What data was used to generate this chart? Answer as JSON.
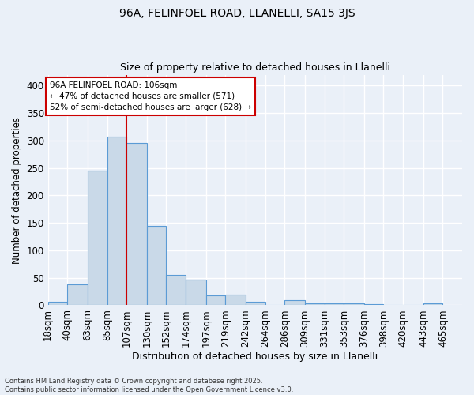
{
  "title1": "96A, FELINFOEL ROAD, LLANELLI, SA15 3JS",
  "title2": "Size of property relative to detached houses in Llanelli",
  "xlabel": "Distribution of detached houses by size in Llanelli",
  "ylabel": "Number of detached properties",
  "bin_labels": [
    "18sqm",
    "40sqm",
    "63sqm",
    "85sqm",
    "107sqm",
    "130sqm",
    "152sqm",
    "174sqm",
    "197sqm",
    "219sqm",
    "242sqm",
    "264sqm",
    "286sqm",
    "309sqm",
    "331sqm",
    "353sqm",
    "376sqm",
    "398sqm",
    "420sqm",
    "443sqm",
    "465sqm"
  ],
  "bin_edges": [
    18,
    40,
    63,
    85,
    107,
    130,
    152,
    174,
    197,
    219,
    242,
    264,
    286,
    309,
    331,
    353,
    376,
    398,
    420,
    443,
    465
  ],
  "bar_heights": [
    7,
    38,
    245,
    307,
    295,
    144,
    56,
    47,
    18,
    19,
    7,
    1,
    10,
    4,
    3,
    4,
    2,
    1,
    1,
    4
  ],
  "bar_color": "#c9d9e8",
  "bar_edge_color": "#5b9bd5",
  "vline_x": 107,
  "vline_color": "#cc0000",
  "annotation_line1": "96A FELINFOEL ROAD: 106sqm",
  "annotation_line2": "← 47% of detached houses are smaller (571)",
  "annotation_line3": "52% of semi-detached houses are larger (628) →",
  "annotation_box_color": "#ffffff",
  "annotation_box_edge": "#cc0000",
  "ylim": [
    0,
    420
  ],
  "yticks": [
    0,
    50,
    100,
    150,
    200,
    250,
    300,
    350,
    400
  ],
  "background_color": "#eaf0f8",
  "grid_color": "#ffffff",
  "footer": "Contains HM Land Registry data © Crown copyright and database right 2025.\nContains public sector information licensed under the Open Government Licence v3.0."
}
